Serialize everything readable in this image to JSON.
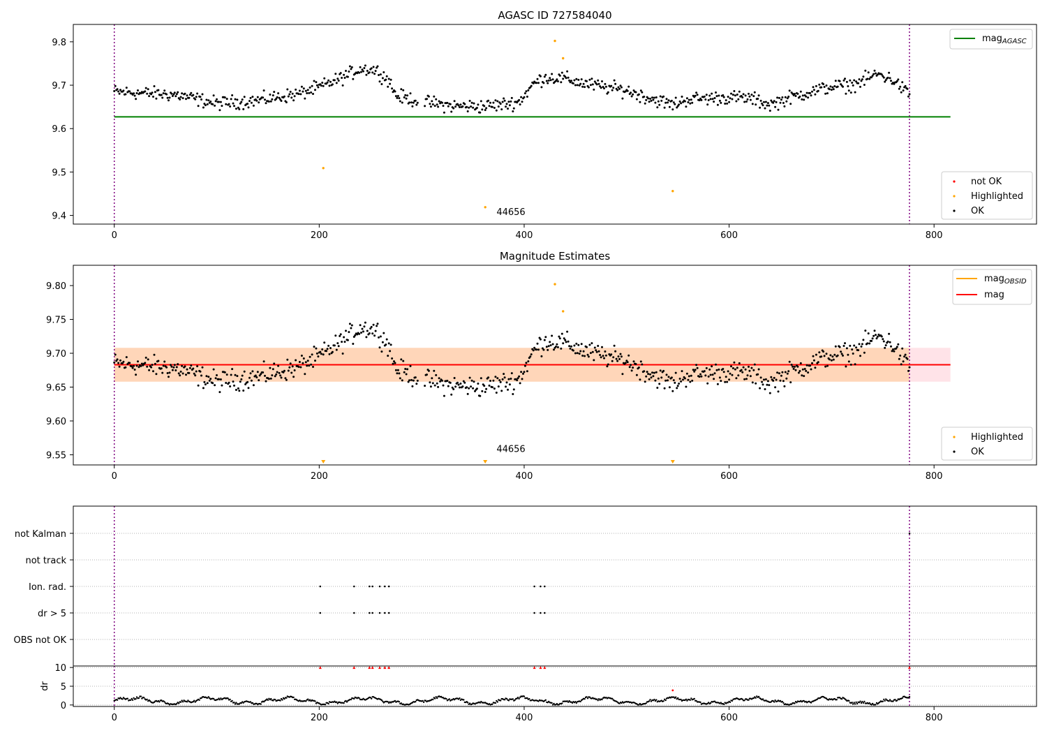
{
  "chart_data": [
    {
      "id": "p1",
      "type": "scatter",
      "title": "AGASC ID 727584040",
      "xlim": [
        -40,
        900
      ],
      "ylim": [
        9.38,
        9.84
      ],
      "xticks": [
        0,
        200,
        400,
        600,
        800
      ],
      "yticks": [
        9.4,
        9.5,
        9.6,
        9.7,
        9.8
      ],
      "ytick_labels": [
        "9.4",
        "9.5",
        "9.6",
        "9.7",
        "9.8"
      ],
      "vlines": [
        0,
        776
      ],
      "hlines": [
        {
          "name": "mag_agasc_line",
          "y": 9.627,
          "x": [
            0,
            816
          ],
          "color": "#008000"
        }
      ],
      "annotation": {
        "text": "44656",
        "x": 373,
        "y": 9.42
      },
      "highlighted": [
        [
          204,
          9.509
        ],
        [
          362,
          9.419
        ],
        [
          430,
          9.802
        ],
        [
          438,
          9.762
        ],
        [
          545,
          9.456
        ]
      ],
      "legend_lines": [
        {
          "label": "mag",
          "sub": "AGASC",
          "color": "#008000"
        }
      ],
      "legend_points": [
        {
          "label": "not OK",
          "color": "#ff0000"
        },
        {
          "label": "Highlighted",
          "color": "#ffa500"
        },
        {
          "label": "OK",
          "color": "#000000"
        }
      ]
    },
    {
      "id": "p2",
      "type": "scatter",
      "title": "Magnitude Estimates",
      "xlim": [
        -40,
        900
      ],
      "ylim": [
        9.535,
        9.83
      ],
      "xticks": [
        0,
        200,
        400,
        600,
        800
      ],
      "yticks": [
        9.55,
        9.6,
        9.65,
        9.7,
        9.75,
        9.8
      ],
      "ytick_labels": [
        "9.55",
        "9.60",
        "9.65",
        "9.70",
        "9.75",
        "9.80"
      ],
      "vlines": [
        0,
        776
      ],
      "hlines": [
        {
          "name": "mag_line",
          "y": 9.683,
          "x": [
            0,
            816
          ],
          "color": "#ff0000"
        }
      ],
      "bands": [
        {
          "name": "mag-band",
          "y": [
            9.658,
            9.708
          ],
          "x": [
            0,
            816
          ],
          "color": "#ffc0cb",
          "opacity": 0.45
        },
        {
          "name": "mag-obsid-band",
          "y": [
            9.658,
            9.708
          ],
          "x": [
            0,
            776
          ],
          "color": "#ffa500",
          "opacity": 0.2
        }
      ],
      "annotation": {
        "text": "44656",
        "x": 373,
        "y": 9.552
      },
      "highlighted": [
        [
          430,
          9.802
        ],
        [
          438,
          9.762
        ]
      ],
      "offscale_markers": [
        204,
        362,
        545
      ],
      "legend_lines": [
        {
          "label": "mag",
          "sub": "OBSID",
          "color": "#ffa500"
        },
        {
          "label": "mag",
          "sub": "",
          "color": "#ff0000"
        }
      ],
      "legend_points": [
        {
          "label": "Highlighted",
          "color": "#ffa500"
        },
        {
          "label": "OK",
          "color": "#000000"
        }
      ]
    },
    {
      "id": "p3",
      "type": "scatter",
      "title": "",
      "xlim": [
        -40,
        900
      ],
      "flag_rows": [
        "not Kalman",
        "not track",
        "Ion. rad.",
        "dr > 5",
        "OBS not OK"
      ],
      "vlines": [
        0,
        776
      ],
      "flag_points": {
        "not Kalman": [
          776
        ],
        "not track": [],
        "Ion. rad.": [
          201,
          234,
          249,
          252,
          259,
          264,
          268,
          410,
          416,
          420
        ],
        "dr > 5": [
          201,
          234,
          249,
          252,
          259,
          264,
          268,
          410,
          416,
          420
        ],
        "OBS not OK": []
      }
    },
    {
      "id": "p4",
      "type": "scatter",
      "title": "",
      "ylabel": "dr",
      "xlim": [
        -40,
        900
      ],
      "ylim": [
        -0.4,
        10.4
      ],
      "xticks": [
        0,
        200,
        400,
        600,
        800
      ],
      "yticks": [
        0,
        5,
        10
      ],
      "ytick_labels": [
        "0",
        "5",
        "10"
      ],
      "vlines": [
        0,
        776
      ],
      "red_points": [
        201,
        234,
        249,
        252,
        259,
        264,
        268,
        410,
        416,
        420,
        776
      ],
      "red_extra": [
        [
          545,
          3.9
        ]
      ]
    }
  ]
}
